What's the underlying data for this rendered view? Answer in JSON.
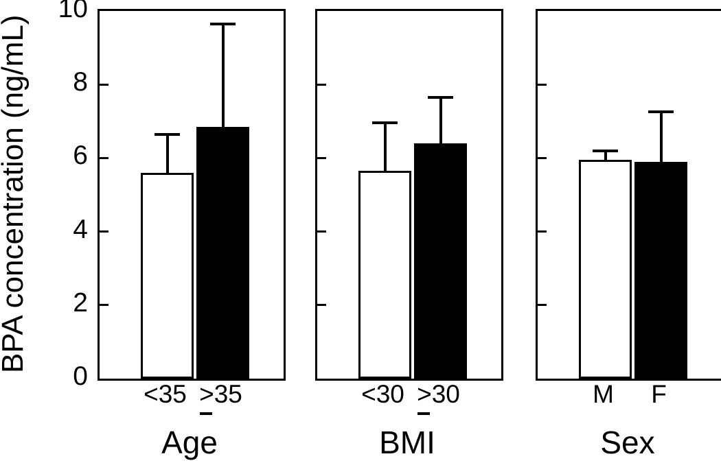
{
  "chart_data": {
    "type": "bar",
    "title": "",
    "ylabel": "BPA concentration (ng/mL)",
    "xlabel": "",
    "ylim": [
      0,
      10
    ],
    "yticks": [
      0,
      2,
      4,
      6,
      8,
      10
    ],
    "grid": false,
    "legend": null,
    "axis_color": "#000000",
    "bar_fill_colors": [
      "#ffffff",
      "#000000"
    ],
    "bar_edge_color": "#000000",
    "panels": [
      {
        "xlabel": "Age",
        "categories": [
          "<35",
          "≥35"
        ],
        "values": [
          5.6,
          6.85
        ],
        "error_top": [
          6.65,
          9.65
        ]
      },
      {
        "xlabel": "BMI",
        "categories": [
          "<30",
          "≥30"
        ],
        "values": [
          5.65,
          6.4
        ],
        "error_top": [
          6.95,
          7.65
        ]
      },
      {
        "xlabel": "Sex",
        "categories": [
          "M",
          "F"
        ],
        "values": [
          5.95,
          5.9
        ],
        "error_top": [
          6.2,
          7.25
        ]
      }
    ]
  }
}
